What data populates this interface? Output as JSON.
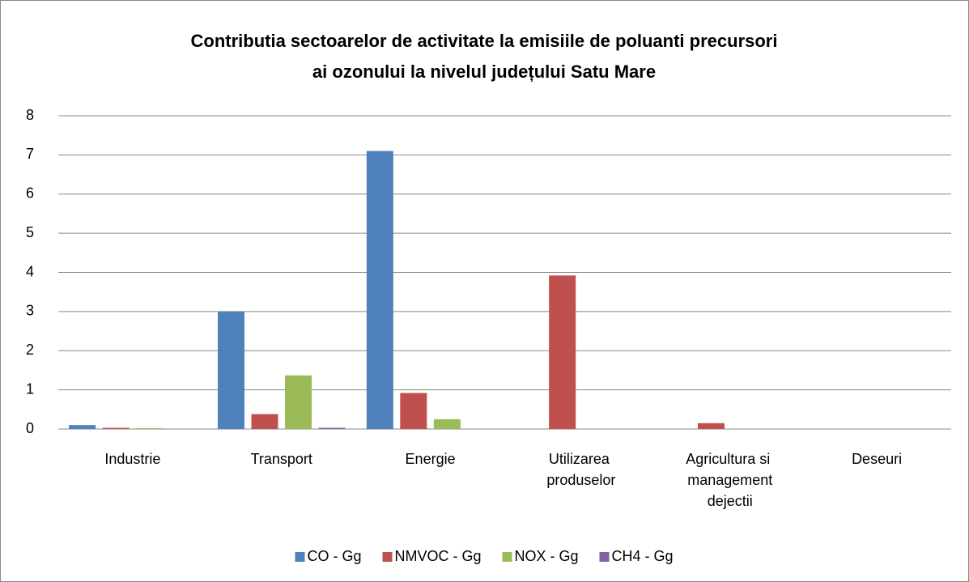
{
  "chart_data": {
    "type": "bar",
    "title": [
      "Contributia sectoarelor de activitate la emisiile de poluanti precursori",
      "ai ozonului la nivelul  județului Satu Mare"
    ],
    "categories": [
      "Industrie",
      "Transport",
      "Energie",
      "Utilizarea produselor",
      "Agricultura si management dejectii",
      "Deseuri"
    ],
    "series": [
      {
        "name": "CO - Gg",
        "color": "#4f81bd",
        "values": [
          0.1,
          3.0,
          7.1,
          0,
          0,
          0
        ]
      },
      {
        "name": "NMVOC - Gg",
        "color": "#c0504d",
        "values": [
          0.03,
          0.38,
          0.92,
          3.92,
          0.15,
          0
        ]
      },
      {
        "name": "NOX - Gg",
        "color": "#9bbb59",
        "values": [
          0.02,
          1.37,
          0.25,
          0,
          0,
          0
        ]
      },
      {
        "name": "CH4 - Gg",
        "color": "#8064a2",
        "values": [
          0,
          0.03,
          0,
          0,
          0,
          0
        ]
      }
    ],
    "ylim": [
      0,
      8
    ],
    "yticks": [
      0,
      1,
      2,
      3,
      4,
      5,
      6,
      7,
      8
    ],
    "grid": true,
    "legend": "bottom"
  }
}
